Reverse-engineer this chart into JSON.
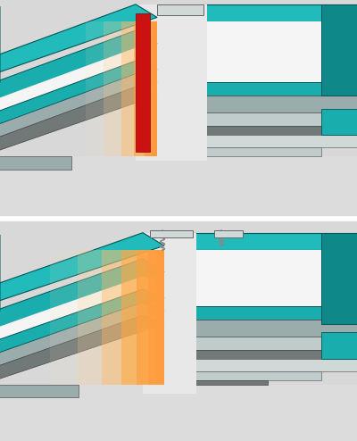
{
  "bg_color": "#d8d8d8",
  "teal": "#1AADAD",
  "teal_top": "#22BBBB",
  "teal_dark": "#0E8888",
  "teal_outline": "#005555",
  "white_top": "#f5f5f5",
  "gray_side": "#9aacac",
  "gray_mid": "#8a9a9a",
  "gray_dark": "#707878",
  "gray_light": "#c0cccc",
  "gray_lighter": "#d0d8d8",
  "red_beam": "#cc1111",
  "sep_color": "#ffffff",
  "fig_w": 4.0,
  "fig_h": 4.94,
  "dpi": 100
}
